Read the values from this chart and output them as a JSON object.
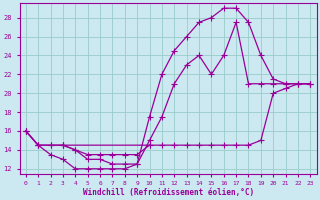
{
  "xlabel": "Windchill (Refroidissement éolien,°C)",
  "background_color": "#cce8f0",
  "line_color": "#990099",
  "grid_color": "#99cccc",
  "xlim": [
    -0.5,
    23.5
  ],
  "ylim": [
    11.5,
    29.5
  ],
  "xticks": [
    0,
    1,
    2,
    3,
    4,
    5,
    6,
    7,
    8,
    9,
    10,
    11,
    12,
    13,
    14,
    15,
    16,
    17,
    18,
    19,
    20,
    21,
    22,
    23
  ],
  "yticks": [
    12,
    14,
    16,
    18,
    20,
    22,
    24,
    26,
    28
  ],
  "line1_x": [
    0,
    1,
    2,
    3,
    10,
    11,
    12,
    13,
    14,
    15,
    16,
    17,
    18,
    19,
    20,
    21,
    22,
    23
  ],
  "line1_y": [
    16,
    14.5,
    14.5,
    14.5,
    14.5,
    14.5,
    14.5,
    14.5,
    14.5,
    14.5,
    14.5,
    14.5,
    14.5,
    15,
    20,
    20.5,
    21,
    21
  ],
  "line2_x": [
    0,
    1,
    2,
    3,
    4,
    5,
    6,
    7,
    8,
    9,
    10,
    11,
    12,
    13,
    14,
    15,
    16,
    17,
    18,
    19,
    20,
    21,
    22,
    23
  ],
  "line2_y": [
    16,
    14.5,
    14.5,
    14.5,
    14,
    13,
    13,
    12.5,
    12.5,
    12.5,
    17.5,
    22,
    24.5,
    26,
    27.5,
    28,
    29,
    29,
    27.5,
    24,
    21.5,
    21,
    21,
    21
  ],
  "line3_x": [
    0,
    1,
    2,
    3,
    4,
    5,
    6,
    7,
    8,
    9,
    10,
    11,
    12,
    13,
    14,
    15,
    16,
    17,
    18,
    19,
    20,
    21,
    22,
    23
  ],
  "line3_y": [
    16,
    14.5,
    13.5,
    13,
    12,
    12,
    12,
    12,
    12,
    12.5,
    15,
    17.5,
    21,
    23,
    24,
    22,
    24,
    27.5,
    21,
    21,
    21,
    21,
    21,
    21
  ],
  "line4_x": [
    3,
    4,
    5,
    6,
    7,
    8,
    9,
    10
  ],
  "line4_y": [
    14.5,
    14,
    13.5,
    13.5,
    13.5,
    13.5,
    13.5,
    14.5
  ],
  "marker": "+",
  "markersize": 4
}
